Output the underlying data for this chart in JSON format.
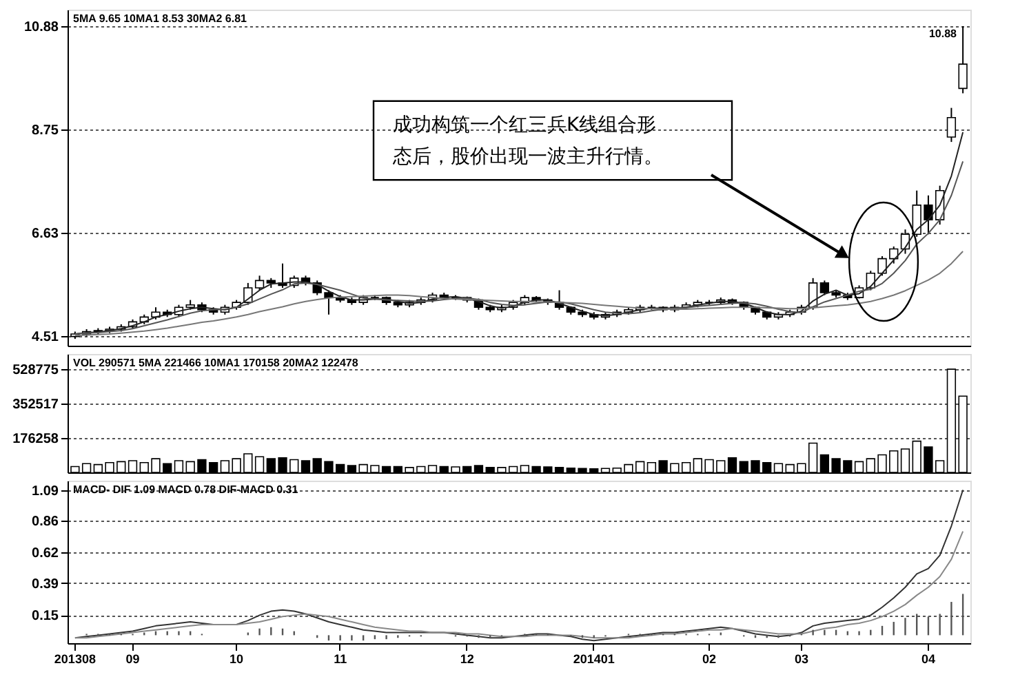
{
  "chart_data": [
    {
      "type": "candlestick",
      "color": "#000000",
      "grid": "y",
      "tick_labels": "y",
      "categories": [
        "201308",
        null,
        null,
        null,
        null,
        "09",
        null,
        null,
        null,
        null,
        null,
        null,
        null,
        null,
        "10",
        null,
        null,
        null,
        null,
        null,
        null,
        null,
        null,
        "11",
        null,
        null,
        null,
        null,
        null,
        null,
        null,
        null,
        null,
        null,
        "12",
        null,
        null,
        null,
        null,
        null,
        null,
        null,
        null,
        null,
        null,
        "201401",
        null,
        null,
        null,
        null,
        null,
        null,
        null,
        null,
        null,
        "02",
        null,
        null,
        null,
        null,
        null,
        null,
        null,
        "03",
        null,
        null,
        null,
        null,
        null,
        null,
        null,
        null,
        null,
        null,
        "04",
        null,
        null,
        null
      ],
      "ohlc": [
        [
          4.5,
          4.6,
          4.45,
          4.55
        ],
        [
          4.55,
          4.65,
          4.5,
          4.6
        ],
        [
          4.6,
          4.67,
          4.55,
          4.62
        ],
        [
          4.62,
          4.7,
          4.57,
          4.65
        ],
        [
          4.65,
          4.75,
          4.6,
          4.7
        ],
        [
          4.7,
          4.85,
          4.65,
          4.8
        ],
        [
          4.8,
          4.95,
          4.75,
          4.9
        ],
        [
          4.9,
          5.1,
          4.85,
          5.0
        ],
        [
          5.0,
          5.05,
          4.9,
          4.95
        ],
        [
          4.95,
          5.15,
          4.9,
          5.1
        ],
        [
          5.1,
          5.25,
          5.05,
          5.15
        ],
        [
          5.15,
          5.2,
          5.0,
          5.05
        ],
        [
          5.05,
          5.1,
          4.95,
          5.0
        ],
        [
          5.0,
          5.15,
          4.95,
          5.1
        ],
        [
          5.1,
          5.25,
          5.05,
          5.2
        ],
        [
          5.2,
          5.6,
          5.15,
          5.5
        ],
        [
          5.5,
          5.75,
          5.45,
          5.65
        ],
        [
          5.65,
          5.7,
          5.5,
          5.6
        ],
        [
          5.6,
          6.0,
          5.5,
          5.55
        ],
        [
          5.55,
          5.75,
          5.5,
          5.7
        ],
        [
          5.7,
          5.75,
          5.55,
          5.6
        ],
        [
          5.6,
          5.65,
          5.35,
          5.4
        ],
        [
          5.4,
          5.45,
          4.95,
          5.3
        ],
        [
          5.3,
          5.35,
          5.2,
          5.25
        ],
        [
          5.25,
          5.3,
          5.15,
          5.2
        ],
        [
          5.2,
          5.35,
          5.15,
          5.3
        ],
        [
          5.3,
          5.35,
          5.25,
          5.3
        ],
        [
          5.3,
          5.32,
          5.15,
          5.2
        ],
        [
          5.2,
          5.25,
          5.1,
          5.15
        ],
        [
          5.15,
          5.25,
          5.1,
          5.2
        ],
        [
          5.2,
          5.3,
          5.15,
          5.25
        ],
        [
          5.25,
          5.4,
          5.2,
          5.35
        ],
        [
          5.35,
          5.4,
          5.25,
          5.3
        ],
        [
          5.3,
          5.35,
          5.25,
          5.3
        ],
        [
          5.3,
          5.32,
          5.2,
          5.25
        ],
        [
          5.25,
          5.28,
          5.05,
          5.1
        ],
        [
          5.1,
          5.15,
          5.0,
          5.05
        ],
        [
          5.05,
          5.15,
          5.0,
          5.1
        ],
        [
          5.1,
          5.25,
          5.05,
          5.2
        ],
        [
          5.2,
          5.35,
          5.15,
          5.3
        ],
        [
          5.3,
          5.33,
          5.2,
          5.25
        ],
        [
          5.25,
          5.28,
          5.15,
          5.2
        ],
        [
          5.2,
          5.45,
          5.05,
          5.1
        ],
        [
          5.1,
          5.12,
          4.95,
          5.0
        ],
        [
          5.0,
          5.05,
          4.9,
          4.95
        ],
        [
          4.95,
          5.0,
          4.85,
          4.9
        ],
        [
          4.9,
          5.0,
          4.85,
          4.95
        ],
        [
          4.95,
          5.05,
          4.9,
          5.0
        ],
        [
          5.0,
          5.1,
          4.95,
          5.05
        ],
        [
          5.05,
          5.15,
          5.0,
          5.1
        ],
        [
          5.1,
          5.15,
          5.05,
          5.1
        ],
        [
          5.1,
          5.12,
          5.0,
          5.05
        ],
        [
          5.05,
          5.15,
          5.0,
          5.1
        ],
        [
          5.1,
          5.2,
          5.05,
          5.15
        ],
        [
          5.15,
          5.25,
          5.1,
          5.2
        ],
        [
          5.2,
          5.25,
          5.15,
          5.2
        ],
        [
          5.2,
          5.3,
          5.15,
          5.25
        ],
        [
          5.25,
          5.28,
          5.15,
          5.2
        ],
        [
          5.2,
          5.22,
          5.05,
          5.1
        ],
        [
          5.1,
          5.12,
          4.95,
          5.0
        ],
        [
          5.0,
          5.02,
          4.85,
          4.9
        ],
        [
          4.9,
          5.0,
          4.85,
          4.95
        ],
        [
          4.95,
          5.05,
          4.9,
          5.0
        ],
        [
          5.0,
          5.15,
          4.95,
          5.1
        ],
        [
          5.1,
          5.7,
          5.05,
          5.6
        ],
        [
          5.6,
          5.65,
          5.35,
          5.4
        ],
        [
          5.4,
          5.45,
          5.3,
          5.35
        ],
        [
          5.35,
          5.4,
          5.25,
          5.3
        ],
        [
          5.3,
          5.55,
          5.28,
          5.5
        ],
        [
          5.5,
          5.85,
          5.45,
          5.8
        ],
        [
          5.8,
          6.15,
          5.75,
          6.1
        ],
        [
          6.1,
          6.35,
          6.0,
          6.3
        ],
        [
          6.3,
          6.7,
          6.2,
          6.6
        ],
        [
          6.6,
          7.5,
          6.55,
          7.2
        ],
        [
          7.2,
          7.4,
          6.6,
          6.9
        ],
        [
          6.9,
          7.6,
          6.8,
          7.5
        ],
        [
          8.6,
          9.2,
          8.5,
          9.0
        ],
        [
          9.6,
          10.88,
          9.5,
          10.1
        ]
      ],
      "series": [
        {
          "type": "line",
          "color": "#222222",
          "values": [
            4.55,
            4.58,
            4.59,
            4.62,
            4.66,
            4.72,
            4.8,
            4.9,
            4.95,
            5.02,
            5.07,
            5.1,
            5.07,
            5.05,
            5.1,
            5.27,
            5.45,
            5.58,
            5.6,
            5.62,
            5.62,
            5.57,
            5.43,
            5.32,
            5.25,
            5.25,
            5.27,
            5.27,
            5.22,
            5.18,
            5.2,
            5.27,
            5.3,
            5.32,
            5.28,
            5.22,
            5.13,
            5.08,
            5.12,
            5.2,
            5.25,
            5.25,
            5.18,
            5.1,
            5.02,
            4.95,
            4.93,
            4.95,
            5.0,
            5.05,
            5.08,
            5.08,
            5.08,
            5.1,
            5.15,
            5.18,
            5.22,
            5.22,
            5.18,
            5.1,
            5.0,
            4.95,
            4.95,
            5.02,
            5.23,
            5.37,
            5.45,
            5.35,
            5.38,
            5.53,
            5.8,
            6.07,
            6.33,
            6.7,
            6.9,
            7.2,
            7.8,
            8.7
          ]
        },
        {
          "type": "line",
          "color": "#555555",
          "values": [
            4.55,
            4.57,
            4.58,
            4.6,
            4.62,
            4.66,
            4.72,
            4.78,
            4.84,
            4.91,
            4.98,
            5.03,
            5.05,
            5.06,
            5.1,
            5.17,
            5.27,
            5.37,
            5.46,
            5.58,
            5.6,
            5.57,
            5.51,
            5.45,
            5.37,
            5.29,
            5.27,
            5.25,
            5.24,
            5.23,
            5.22,
            5.23,
            5.26,
            5.28,
            5.29,
            5.26,
            5.2,
            5.16,
            5.14,
            5.15,
            5.18,
            5.21,
            5.21,
            5.17,
            5.11,
            5.05,
            5.0,
            4.98,
            4.97,
            4.99,
            5.03,
            5.06,
            5.08,
            5.09,
            5.12,
            5.14,
            5.16,
            5.18,
            5.19,
            5.17,
            5.12,
            5.06,
            5.01,
            4.99,
            5.11,
            5.21,
            5.28,
            5.35,
            5.43,
            5.47,
            5.59,
            5.8,
            6.06,
            6.4,
            6.62,
            6.9,
            7.4,
            8.1
          ]
        },
        {
          "type": "line",
          "color": "#777777",
          "values": [
            4.52,
            4.53,
            4.54,
            4.55,
            4.57,
            4.59,
            4.61,
            4.64,
            4.67,
            4.71,
            4.75,
            4.79,
            4.82,
            4.86,
            4.9,
            4.95,
            5.01,
            5.06,
            5.11,
            5.17,
            5.22,
            5.26,
            5.29,
            5.31,
            5.32,
            5.33,
            5.34,
            5.35,
            5.35,
            5.34,
            5.32,
            5.3,
            5.28,
            5.27,
            5.26,
            5.25,
            5.24,
            5.23,
            5.22,
            5.22,
            5.21,
            5.21,
            5.2,
            5.19,
            5.18,
            5.16,
            5.14,
            5.12,
            5.1,
            5.08,
            5.07,
            5.06,
            5.06,
            5.06,
            5.07,
            5.08,
            5.09,
            5.1,
            5.1,
            5.1,
            5.09,
            5.08,
            5.07,
            5.07,
            5.09,
            5.11,
            5.13,
            5.15,
            5.18,
            5.22,
            5.28,
            5.35,
            5.44,
            5.55,
            5.66,
            5.8,
            6.0,
            6.25
          ]
        }
      ],
      "ylim": [
        4.31,
        11.22
      ],
      "yticks": [
        4.51,
        6.63,
        8.75,
        10.88
      ],
      "annotations": [
        "5MA 9.65  10MA1 8.53  30MA2 6.81",
        "成功构筑一个红三兵K线组合形态后，股价出现一波主升行情。",
        "10.88"
      ]
    },
    {
      "type": "bar",
      "grid": "y",
      "tick_labels": "y",
      "categories": [
        "201308",
        null,
        null,
        null,
        null,
        "09",
        null,
        null,
        null,
        null,
        null,
        null,
        null,
        null,
        "10",
        null,
        null,
        null,
        null,
        null,
        null,
        null,
        null,
        "11",
        null,
        null,
        null,
        null,
        null,
        null,
        null,
        null,
        null,
        null,
        "12",
        null,
        null,
        null,
        null,
        null,
        null,
        null,
        null,
        null,
        null,
        "201401",
        null,
        null,
        null,
        null,
        null,
        null,
        null,
        null,
        null,
        "02",
        null,
        null,
        null,
        null,
        null,
        null,
        null,
        "03",
        null,
        null,
        null,
        null,
        null,
        null,
        null,
        null,
        null,
        null,
        "04",
        null,
        null,
        null
      ],
      "values": [
        30000,
        45000,
        40000,
        50000,
        55000,
        60000,
        50000,
        70000,
        45000,
        60000,
        55000,
        65000,
        50000,
        60000,
        70000,
        95000,
        80000,
        70000,
        75000,
        65000,
        60000,
        70000,
        55000,
        40000,
        35000,
        40000,
        35000,
        30000,
        30000,
        25000,
        30000,
        35000,
        30000,
        28000,
        30000,
        35000,
        25000,
        25000,
        30000,
        35000,
        30000,
        28000,
        25000,
        22000,
        20000,
        18000,
        20000,
        22000,
        40000,
        55000,
        50000,
        60000,
        45000,
        50000,
        70000,
        65000,
        60000,
        75000,
        55000,
        60000,
        50000,
        45000,
        40000,
        45000,
        150000,
        90000,
        70000,
        60000,
        55000,
        70000,
        90000,
        110000,
        120000,
        160000,
        130000,
        60000,
        528000,
        390000
      ],
      "colors": [
        "#ffffff",
        "#ffffff",
        "#ffffff",
        "#ffffff",
        "#ffffff",
        "#ffffff",
        "#ffffff",
        "#ffffff",
        "#000000",
        "#ffffff",
        "#ffffff",
        "#000000",
        "#000000",
        "#ffffff",
        "#ffffff",
        "#ffffff",
        "#ffffff",
        "#000000",
        "#000000",
        "#ffffff",
        "#000000",
        "#000000",
        "#000000",
        "#000000",
        "#000000",
        "#ffffff",
        "#ffffff",
        "#000000",
        "#000000",
        "#ffffff",
        "#ffffff",
        "#ffffff",
        "#000000",
        "#ffffff",
        "#000000",
        "#000000",
        "#000000",
        "#ffffff",
        "#ffffff",
        "#ffffff",
        "#000000",
        "#000000",
        "#000000",
        "#000000",
        "#000000",
        "#000000",
        "#ffffff",
        "#ffffff",
        "#ffffff",
        "#ffffff",
        "#ffffff",
        "#000000",
        "#ffffff",
        "#ffffff",
        "#ffffff",
        "#ffffff",
        "#ffffff",
        "#000000",
        "#000000",
        "#000000",
        "#000000",
        "#ffffff",
        "#ffffff",
        "#ffffff",
        "#ffffff",
        "#000000",
        "#000000",
        "#000000",
        "#ffffff",
        "#ffffff",
        "#ffffff",
        "#ffffff",
        "#ffffff",
        "#ffffff",
        "#000000",
        "#ffffff",
        "#ffffff",
        "#ffffff"
      ],
      "ylim": [
        0,
        606000
      ],
      "yticks": [
        176258,
        352517,
        528775
      ],
      "annotations": [
        "VOL 290571  5MA 221466  10MA1 170158  20MA2 122478"
      ]
    },
    {
      "type": "line",
      "grid": "y",
      "categories": [
        "201308",
        null,
        null,
        null,
        null,
        "09",
        null,
        null,
        null,
        null,
        null,
        null,
        null,
        null,
        "10",
        null,
        null,
        null,
        null,
        null,
        null,
        null,
        null,
        "11",
        null,
        null,
        null,
        null,
        null,
        null,
        null,
        null,
        null,
        null,
        "12",
        null,
        null,
        null,
        null,
        null,
        null,
        null,
        null,
        null,
        null,
        "201401",
        null,
        null,
        null,
        null,
        null,
        null,
        null,
        null,
        null,
        "02",
        null,
        null,
        null,
        null,
        null,
        null,
        null,
        "03",
        null,
        null,
        null,
        null,
        null,
        null,
        null,
        null,
        null,
        null,
        "04",
        null,
        null,
        null
      ],
      "series": [
        {
          "color": "#333333",
          "values": [
            -0.02,
            -0.01,
            0.0,
            0.01,
            0.02,
            0.03,
            0.05,
            0.07,
            0.08,
            0.09,
            0.1,
            0.09,
            0.08,
            0.08,
            0.08,
            0.11,
            0.15,
            0.18,
            0.19,
            0.18,
            0.16,
            0.13,
            0.1,
            0.08,
            0.06,
            0.04,
            0.03,
            0.02,
            0.02,
            0.02,
            0.02,
            0.02,
            0.02,
            0.01,
            0.0,
            -0.01,
            -0.02,
            -0.02,
            -0.01,
            0.0,
            0.01,
            0.01,
            0.0,
            -0.01,
            -0.03,
            -0.04,
            -0.03,
            -0.02,
            -0.01,
            0.0,
            0.01,
            0.02,
            0.02,
            0.03,
            0.04,
            0.05,
            0.06,
            0.05,
            0.03,
            0.01,
            0.0,
            -0.01,
            0.0,
            0.02,
            0.07,
            0.09,
            0.1,
            0.11,
            0.12,
            0.15,
            0.21,
            0.28,
            0.36,
            0.46,
            0.5,
            0.6,
            0.82,
            1.09
          ]
        },
        {
          "color": "#888888",
          "values": [
            -0.02,
            -0.02,
            -0.01,
            0.0,
            0.01,
            0.02,
            0.03,
            0.04,
            0.05,
            0.06,
            0.07,
            0.08,
            0.08,
            0.08,
            0.08,
            0.09,
            0.1,
            0.12,
            0.14,
            0.15,
            0.16,
            0.15,
            0.14,
            0.12,
            0.1,
            0.08,
            0.06,
            0.05,
            0.04,
            0.03,
            0.03,
            0.02,
            0.02,
            0.02,
            0.01,
            0.01,
            0.0,
            -0.01,
            -0.01,
            -0.01,
            0.0,
            0.0,
            0.0,
            0.0,
            -0.01,
            -0.02,
            -0.02,
            -0.02,
            -0.02,
            -0.01,
            0.0,
            0.01,
            0.01,
            0.02,
            0.03,
            0.04,
            0.04,
            0.05,
            0.04,
            0.03,
            0.02,
            0.01,
            0.01,
            0.01,
            0.03,
            0.05,
            0.06,
            0.08,
            0.09,
            0.11,
            0.14,
            0.18,
            0.23,
            0.3,
            0.36,
            0.44,
            0.57,
            0.78
          ]
        },
        {
          "type": "bar",
          "color": "#555555",
          "values": [
            null,
            0.01,
            0.01,
            0.01,
            0.01,
            0.01,
            0.02,
            0.03,
            0.03,
            0.03,
            0.03,
            0.01,
            null,
            null,
            null,
            0.02,
            0.05,
            0.06,
            0.05,
            0.03,
            null,
            -0.02,
            -0.04,
            -0.04,
            -0.04,
            -0.04,
            -0.03,
            -0.03,
            -0.02,
            -0.01,
            -0.01,
            null,
            null,
            -0.01,
            -0.01,
            -0.02,
            -0.02,
            -0.01,
            null,
            0.01,
            0.01,
            0.01,
            null,
            -0.01,
            -0.02,
            -0.02,
            -0.01,
            null,
            0.01,
            0.01,
            0.01,
            0.01,
            0.01,
            0.01,
            0.01,
            0.01,
            0.02,
            null,
            -0.01,
            -0.02,
            -0.02,
            -0.02,
            -0.01,
            0.01,
            0.04,
            0.04,
            0.04,
            0.03,
            0.03,
            0.04,
            0.07,
            0.1,
            0.13,
            0.16,
            0.14,
            0.16,
            0.25,
            0.31
          ]
        }
      ],
      "ylim": [
        -0.06,
        1.16
      ],
      "yticks": [
        0.15,
        0.39,
        0.62,
        0.86,
        1.09
      ],
      "annotations": [
        "MACD- DIF 1.09  MACD 0.78  DIF-MACD 0.31"
      ]
    }
  ]
}
